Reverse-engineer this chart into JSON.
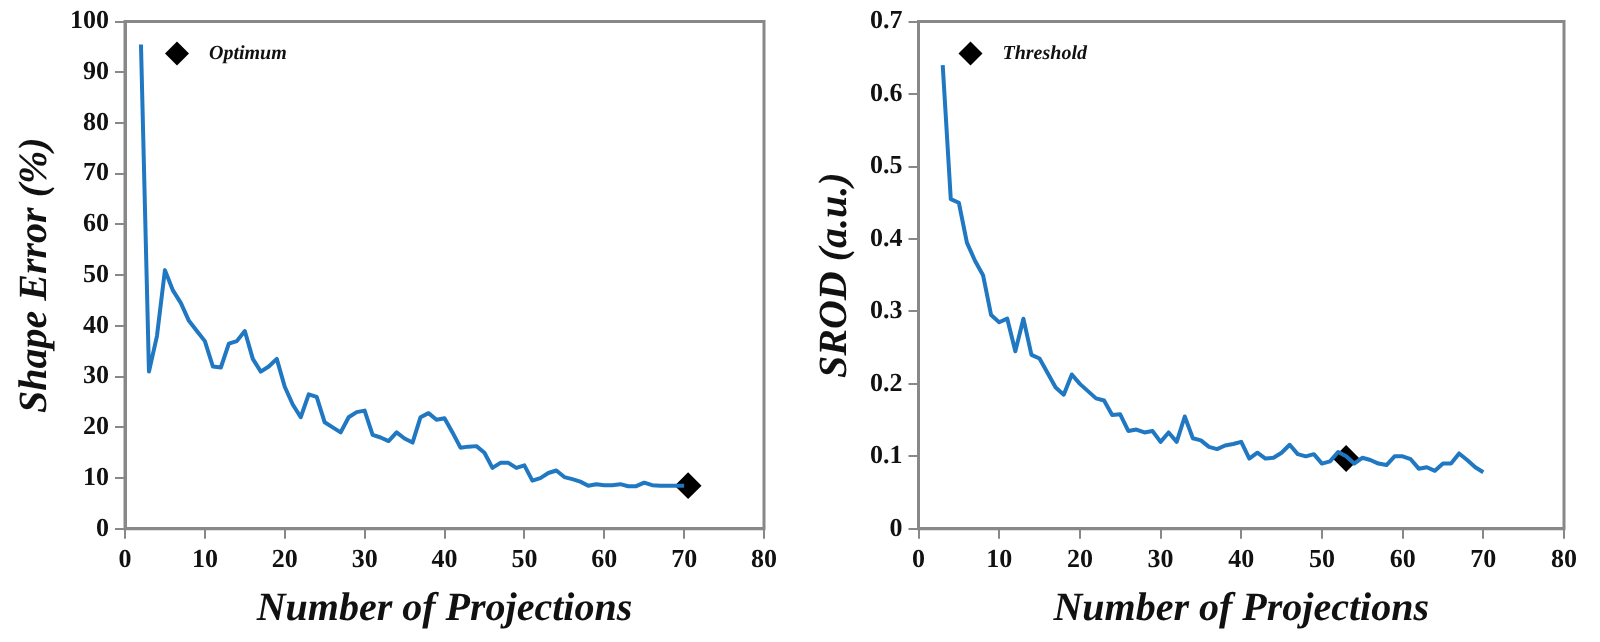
{
  "chart_data": [
    {
      "type": "line",
      "xlabel": "Number of Projections",
      "ylabel": "Shape Error (%)",
      "xlim": [
        0,
        80
      ],
      "xticks": [
        0,
        10,
        20,
        30,
        40,
        50,
        60,
        70,
        80
      ],
      "ylim": [
        0,
        100
      ],
      "yticks": [
        0,
        10,
        20,
        30,
        40,
        50,
        60,
        70,
        80,
        90,
        100
      ],
      "grid": false,
      "legend": "top left",
      "series": [
        {
          "color": "#1f78c1",
          "marker": "none",
          "x": [
            2,
            3,
            4,
            5,
            6,
            7,
            8,
            9,
            10,
            11,
            12,
            13,
            14,
            15,
            16,
            17,
            18,
            19,
            20,
            21,
            22,
            23,
            24,
            25,
            26,
            27,
            28,
            29,
            30,
            31,
            32,
            33,
            34,
            35,
            36,
            37,
            38,
            39,
            40,
            41,
            42,
            43,
            44,
            45,
            46,
            47,
            48,
            49,
            50,
            51,
            52,
            53,
            54,
            55,
            56,
            57,
            58,
            59,
            60,
            61,
            62,
            63,
            64,
            65,
            66,
            67,
            68,
            69,
            70
          ],
          "values": [
            95.5,
            31,
            38,
            51,
            47,
            44.5,
            41,
            39,
            37,
            32,
            31.8,
            36.5,
            37,
            39,
            33.5,
            31,
            32,
            33.5,
            28,
            24.5,
            22,
            26.5,
            26,
            21,
            20,
            19,
            22,
            23,
            23.3,
            18.5,
            18,
            17.3,
            19,
            17.8,
            17,
            22,
            22.8,
            21.5,
            21.8,
            19,
            16,
            16.2,
            16.3,
            15,
            12,
            13,
            13,
            12,
            12.5,
            9.5,
            10,
            11,
            11.5,
            10.2,
            9.8,
            9.3,
            8.5,
            8.8,
            8.6,
            8.6,
            8.8,
            8.4,
            8.4,
            9.1,
            8.6,
            8.5,
            8.5,
            8.5,
            8.5
          ]
        },
        {
          "type": "scatter",
          "name": "Optimum",
          "color": "#000000",
          "marker": "diamond",
          "x": [
            70.5
          ],
          "values": [
            8.5
          ]
        }
      ]
    },
    {
      "type": "line",
      "xlabel": "Number of Projections",
      "ylabel": "SROD (a.u.)",
      "xlim": [
        0,
        80
      ],
      "xticks": [
        0,
        10,
        20,
        30,
        40,
        50,
        60,
        70,
        80
      ],
      "ylim": [
        0,
        0.7
      ],
      "yticks": [
        0,
        0.1,
        0.2,
        0.3,
        0.4,
        0.5,
        0.6,
        0.7
      ],
      "grid": false,
      "legend": "top left",
      "series": [
        {
          "color": "#1f78c1",
          "marker": "none",
          "x": [
            3,
            4,
            5,
            6,
            7,
            8,
            9,
            10,
            11,
            12,
            13,
            14,
            15,
            16,
            17,
            18,
            19,
            20,
            21,
            22,
            23,
            24,
            25,
            26,
            27,
            28,
            29,
            30,
            31,
            32,
            33,
            34,
            35,
            36,
            37,
            38,
            39,
            40,
            41,
            42,
            43,
            44,
            45,
            46,
            47,
            48,
            49,
            50,
            51,
            52,
            53,
            54,
            55,
            56,
            57,
            58,
            59,
            60,
            61,
            62,
            63,
            64,
            65,
            66,
            67,
            68,
            69,
            70
          ],
          "values": [
            0.64,
            0.455,
            0.45,
            0.395,
            0.37,
            0.35,
            0.295,
            0.285,
            0.29,
            0.245,
            0.29,
            0.24,
            0.235,
            0.215,
            0.195,
            0.185,
            0.213,
            0.2,
            0.19,
            0.18,
            0.177,
            0.157,
            0.158,
            0.135,
            0.137,
            0.133,
            0.135,
            0.12,
            0.133,
            0.12,
            0.155,
            0.125,
            0.122,
            0.113,
            0.11,
            0.115,
            0.117,
            0.12,
            0.097,
            0.105,
            0.097,
            0.098,
            0.105,
            0.116,
            0.103,
            0.1,
            0.103,
            0.09,
            0.093,
            0.106,
            0.1,
            0.09,
            0.098,
            0.095,
            0.09,
            0.088,
            0.1,
            0.1,
            0.096,
            0.083,
            0.085,
            0.08,
            0.09,
            0.09,
            0.104,
            0.095,
            0.085,
            0.078
          ]
        },
        {
          "type": "scatter",
          "name": "Threshold",
          "color": "#000000",
          "marker": "diamond",
          "x": [
            53
          ],
          "values": [
            0.097
          ]
        }
      ]
    }
  ]
}
